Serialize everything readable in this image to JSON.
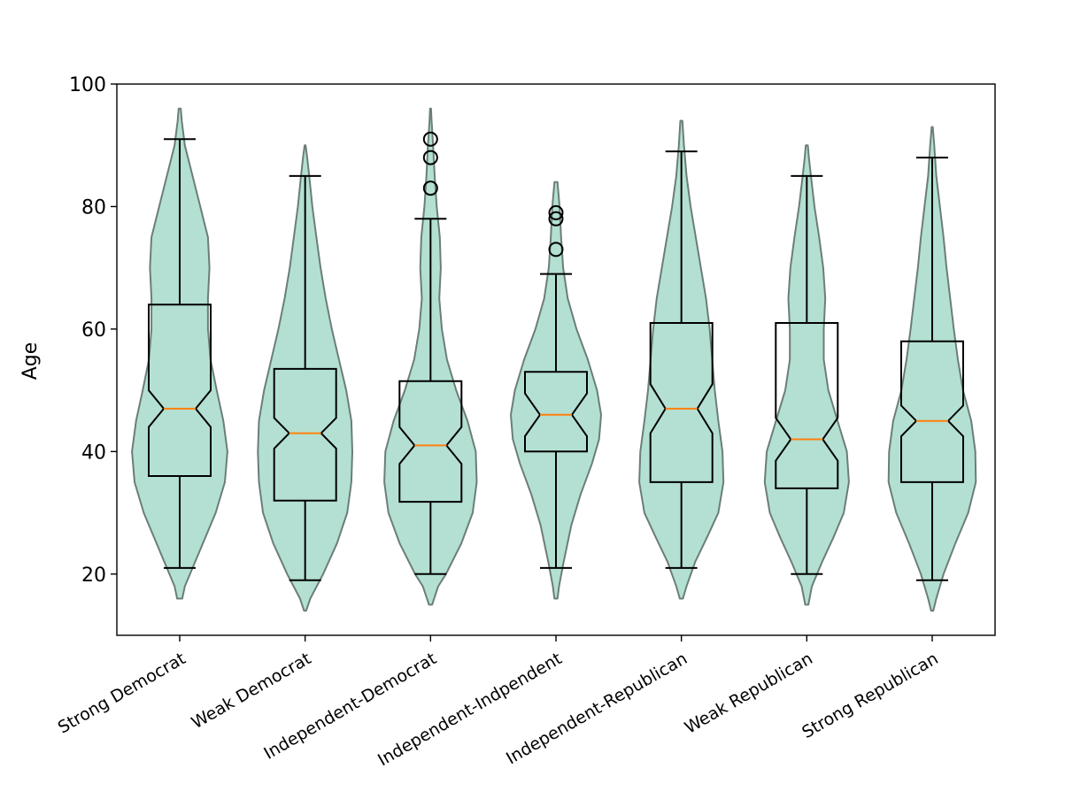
{
  "chart_data": {
    "type": "violin",
    "title": "",
    "xlabel": "",
    "ylabel": "Age",
    "ylim": [
      10,
      100
    ],
    "yticks": [
      20,
      40,
      60,
      80,
      100
    ],
    "grid": false,
    "colors": {
      "violin_fill": "#b3e0d2",
      "violin_edge": "#6b7e77",
      "box": "#000000",
      "median": "#ff7f0e"
    },
    "categories": [
      "Strong Democrat",
      "Weak Democrat",
      "Independent-Democrat",
      "Independent-Indpendent",
      "Independent-Republican",
      "Weak Republican",
      "Strong Republican"
    ],
    "groups": [
      {
        "category": "Strong Democrat",
        "violin_min": 16,
        "violin_max": 96,
        "whisker_low": 21,
        "q1": 36,
        "median": 47,
        "q3": 64,
        "whisker_high": 91,
        "notch_low": 44,
        "notch_high": 50,
        "outliers": [],
        "density": [
          [
            16,
            0.05
          ],
          [
            18,
            0.1
          ],
          [
            20,
            0.2
          ],
          [
            25,
            0.45
          ],
          [
            30,
            0.7
          ],
          [
            35,
            0.88
          ],
          [
            40,
            0.93
          ],
          [
            45,
            0.85
          ],
          [
            50,
            0.72
          ],
          [
            55,
            0.6
          ],
          [
            60,
            0.55
          ],
          [
            65,
            0.55
          ],
          [
            70,
            0.58
          ],
          [
            75,
            0.55
          ],
          [
            80,
            0.4
          ],
          [
            85,
            0.25
          ],
          [
            90,
            0.1
          ],
          [
            94,
            0.04
          ],
          [
            96,
            0.02
          ]
        ]
      },
      {
        "category": "Weak Democrat",
        "violin_min": 14,
        "violin_max": 90,
        "whisker_low": 19,
        "q1": 32,
        "median": 43,
        "q3": 53.5,
        "whisker_high": 85,
        "notch_low": 40.5,
        "notch_high": 45.5,
        "outliers": [],
        "density": [
          [
            14,
            0.02
          ],
          [
            16,
            0.1
          ],
          [
            20,
            0.35
          ],
          [
            25,
            0.62
          ],
          [
            30,
            0.82
          ],
          [
            35,
            0.9
          ],
          [
            40,
            0.92
          ],
          [
            45,
            0.9
          ],
          [
            50,
            0.8
          ],
          [
            55,
            0.66
          ],
          [
            60,
            0.52
          ],
          [
            65,
            0.4
          ],
          [
            70,
            0.3
          ],
          [
            75,
            0.22
          ],
          [
            80,
            0.14
          ],
          [
            85,
            0.08
          ],
          [
            88,
            0.04
          ],
          [
            90,
            0.01
          ]
        ]
      },
      {
        "category": "Independent-Democrat",
        "violin_min": 15,
        "violin_max": 96,
        "whisker_low": 20,
        "q1": 31.8,
        "median": 41,
        "q3": 51.5,
        "whisker_high": 78,
        "notch_low": 38,
        "notch_high": 44,
        "outliers": [
          83,
          88,
          91
        ],
        "density": [
          [
            15,
            0.03
          ],
          [
            18,
            0.15
          ],
          [
            20,
            0.3
          ],
          [
            25,
            0.6
          ],
          [
            30,
            0.82
          ],
          [
            35,
            0.9
          ],
          [
            40,
            0.88
          ],
          [
            45,
            0.72
          ],
          [
            50,
            0.5
          ],
          [
            55,
            0.32
          ],
          [
            60,
            0.22
          ],
          [
            65,
            0.17
          ],
          [
            70,
            0.2
          ],
          [
            75,
            0.18
          ],
          [
            80,
            0.12
          ],
          [
            85,
            0.08
          ],
          [
            90,
            0.05
          ],
          [
            94,
            0.02
          ],
          [
            96,
            0.01
          ]
        ]
      },
      {
        "category": "Independent-Indpendent",
        "violin_min": 16,
        "violin_max": 84,
        "whisker_low": 21,
        "q1": 40,
        "median": 46,
        "q3": 53,
        "whisker_high": 69,
        "notch_low": 42.5,
        "notch_high": 49.5,
        "outliers": [
          73,
          78,
          79
        ],
        "density": [
          [
            16,
            0.03
          ],
          [
            18,
            0.06
          ],
          [
            22,
            0.15
          ],
          [
            28,
            0.3
          ],
          [
            33,
            0.48
          ],
          [
            38,
            0.7
          ],
          [
            42,
            0.84
          ],
          [
            46,
            0.88
          ],
          [
            50,
            0.8
          ],
          [
            55,
            0.62
          ],
          [
            60,
            0.4
          ],
          [
            65,
            0.23
          ],
          [
            70,
            0.14
          ],
          [
            75,
            0.1
          ],
          [
            80,
            0.07
          ],
          [
            84,
            0.03
          ]
        ]
      },
      {
        "category": "Independent-Republican",
        "violin_min": 16,
        "violin_max": 94,
        "whisker_low": 21,
        "q1": 35,
        "median": 47,
        "q3": 61,
        "whisker_high": 89,
        "notch_low": 43,
        "notch_high": 51,
        "outliers": [],
        "density": [
          [
            16,
            0.03
          ],
          [
            18,
            0.1
          ],
          [
            22,
            0.27
          ],
          [
            26,
            0.5
          ],
          [
            30,
            0.72
          ],
          [
            35,
            0.82
          ],
          [
            40,
            0.8
          ],
          [
            45,
            0.72
          ],
          [
            50,
            0.65
          ],
          [
            55,
            0.6
          ],
          [
            60,
            0.55
          ],
          [
            65,
            0.48
          ],
          [
            70,
            0.38
          ],
          [
            75,
            0.28
          ],
          [
            80,
            0.18
          ],
          [
            85,
            0.1
          ],
          [
            90,
            0.05
          ],
          [
            94,
            0.02
          ]
        ]
      },
      {
        "category": "Weak Republican",
        "violin_min": 15,
        "violin_max": 90,
        "whisker_low": 20,
        "q1": 34,
        "median": 42,
        "q3": 61,
        "whisker_high": 85,
        "notch_low": 38.5,
        "notch_high": 45.5,
        "outliers": [],
        "density": [
          [
            15,
            0.03
          ],
          [
            18,
            0.1
          ],
          [
            22,
            0.3
          ],
          [
            26,
            0.52
          ],
          [
            30,
            0.72
          ],
          [
            35,
            0.82
          ],
          [
            40,
            0.78
          ],
          [
            45,
            0.6
          ],
          [
            50,
            0.42
          ],
          [
            55,
            0.33
          ],
          [
            60,
            0.33
          ],
          [
            65,
            0.36
          ],
          [
            70,
            0.32
          ],
          [
            75,
            0.24
          ],
          [
            80,
            0.15
          ],
          [
            85,
            0.08
          ],
          [
            88,
            0.04
          ],
          [
            90,
            0.02
          ]
        ]
      },
      {
        "category": "Strong Republican",
        "violin_min": 14,
        "violin_max": 93,
        "whisker_low": 19,
        "q1": 35,
        "median": 45,
        "q3": 58,
        "whisker_high": 88,
        "notch_low": 42.5,
        "notch_high": 47.5,
        "outliers": [],
        "density": [
          [
            14,
            0.02
          ],
          [
            16,
            0.08
          ],
          [
            20,
            0.22
          ],
          [
            25,
            0.45
          ],
          [
            30,
            0.7
          ],
          [
            35,
            0.85
          ],
          [
            40,
            0.84
          ],
          [
            45,
            0.76
          ],
          [
            50,
            0.6
          ],
          [
            55,
            0.5
          ],
          [
            60,
            0.42
          ],
          [
            65,
            0.35
          ],
          [
            70,
            0.28
          ],
          [
            75,
            0.22
          ],
          [
            80,
            0.15
          ],
          [
            85,
            0.08
          ],
          [
            90,
            0.04
          ],
          [
            93,
            0.01
          ]
        ]
      }
    ]
  }
}
